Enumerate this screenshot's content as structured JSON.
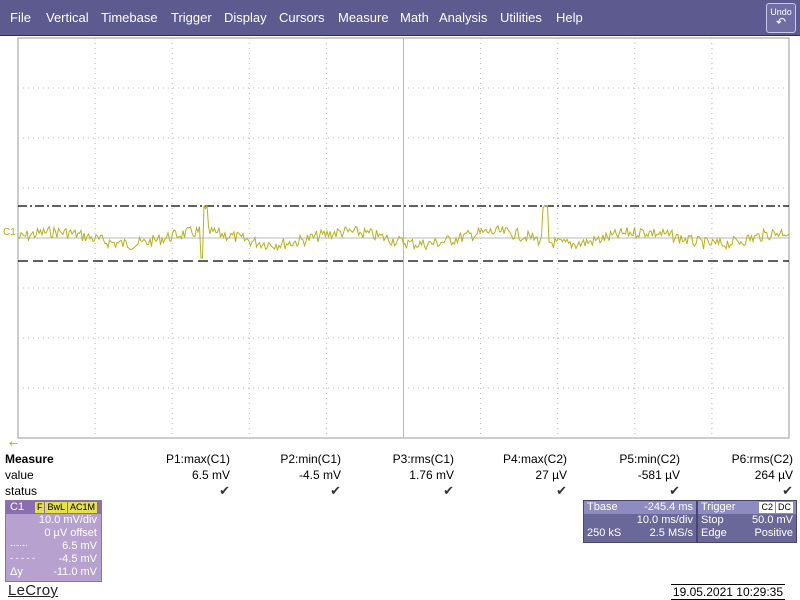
{
  "menu": {
    "items": [
      "File",
      "Vertical",
      "Timebase",
      "Trigger",
      "Display",
      "Cursors",
      "Measure",
      "Math",
      "Analysis",
      "Utilities",
      "Help"
    ],
    "undo_label": "Undo"
  },
  "grid": {
    "divisions_x": 10,
    "divisions_y": 8
  },
  "trace": {
    "label": "C1",
    "color": "#b5b11c"
  },
  "cursor_colors": {
    "dashdot": "#000000",
    "dashed": "#000000"
  },
  "measure": {
    "title": "Measure",
    "row_value_label": "value",
    "row_status_label": "status",
    "params": [
      {
        "name": "P1:max(C1)",
        "value": "6.5 mV"
      },
      {
        "name": "P2:min(C1)",
        "value": "-4.5 mV"
      },
      {
        "name": "P3:rms(C1)",
        "value": "1.76 mV"
      },
      {
        "name": "P4:max(C2)",
        "value": "27 µV"
      },
      {
        "name": "P5:min(C2)",
        "value": "-581 µV"
      },
      {
        "name": "P6:rms(C2)",
        "value": "264 µV"
      }
    ],
    "status_glyph": "✔"
  },
  "channel": {
    "name": "C1",
    "badges": [
      "F",
      "BwL",
      "AC1M"
    ],
    "vdiv": "10.0 mV/div",
    "offset": "0 µV offset",
    "cursor1_symbol": "-·-·-·",
    "cursor1_value": "6.5 mV",
    "cursor2_symbol": "- - - - -",
    "cursor2_value": "-4.5 mV",
    "delta_label": "Δy",
    "delta_value": "-11.0 mV"
  },
  "timebase": {
    "label": "Tbase",
    "delay": "-245.4 ms",
    "tdiv": "10.0 ms/div",
    "samples": "250 kS",
    "rate": "2.5 MS/s"
  },
  "trigger": {
    "label": "Trigger",
    "badges": [
      "C2",
      "DC"
    ],
    "mode_label": "Stop",
    "level": "50.0 mV",
    "type_label": "Edge",
    "slope": "Positive"
  },
  "brand": "LeCroy",
  "datetime": "19.05.2021 10:29:35"
}
